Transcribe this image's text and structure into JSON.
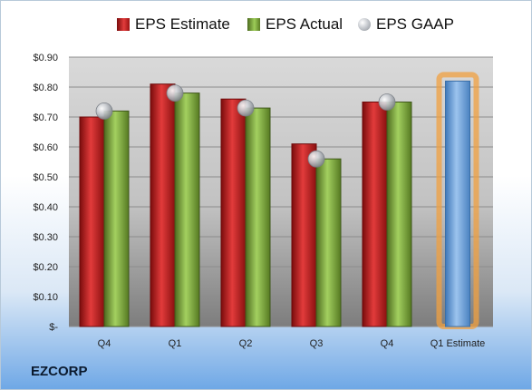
{
  "chart_data": {
    "type": "bar",
    "categories": [
      "Q4",
      "Q1",
      "Q2",
      "Q3",
      "Q4",
      "Q1 Estimate"
    ],
    "series": [
      {
        "name": "EPS Estimate",
        "values": [
          0.7,
          0.81,
          0.76,
          0.61,
          0.75,
          null
        ],
        "color": "#c62020"
      },
      {
        "name": "EPS Actual",
        "values": [
          0.72,
          0.78,
          0.73,
          0.56,
          0.75,
          null
        ],
        "color": "#7aa63a"
      },
      {
        "name": "EPS GAAP",
        "values": [
          0.72,
          0.78,
          0.73,
          0.56,
          0.75,
          null
        ],
        "marker": "circle"
      }
    ],
    "estimate": {
      "category": "Q1 Estimate",
      "value": 0.82,
      "color": "#5b9bd5"
    },
    "ylim": [
      0,
      0.9
    ],
    "yticks": [
      "$-",
      "$0.10",
      "$0.20",
      "$0.30",
      "$0.40",
      "$0.50",
      "$0.60",
      "$0.70",
      "$0.80",
      "$0.90"
    ],
    "grid": true,
    "legend_position": "top"
  },
  "company": "EZCORP"
}
